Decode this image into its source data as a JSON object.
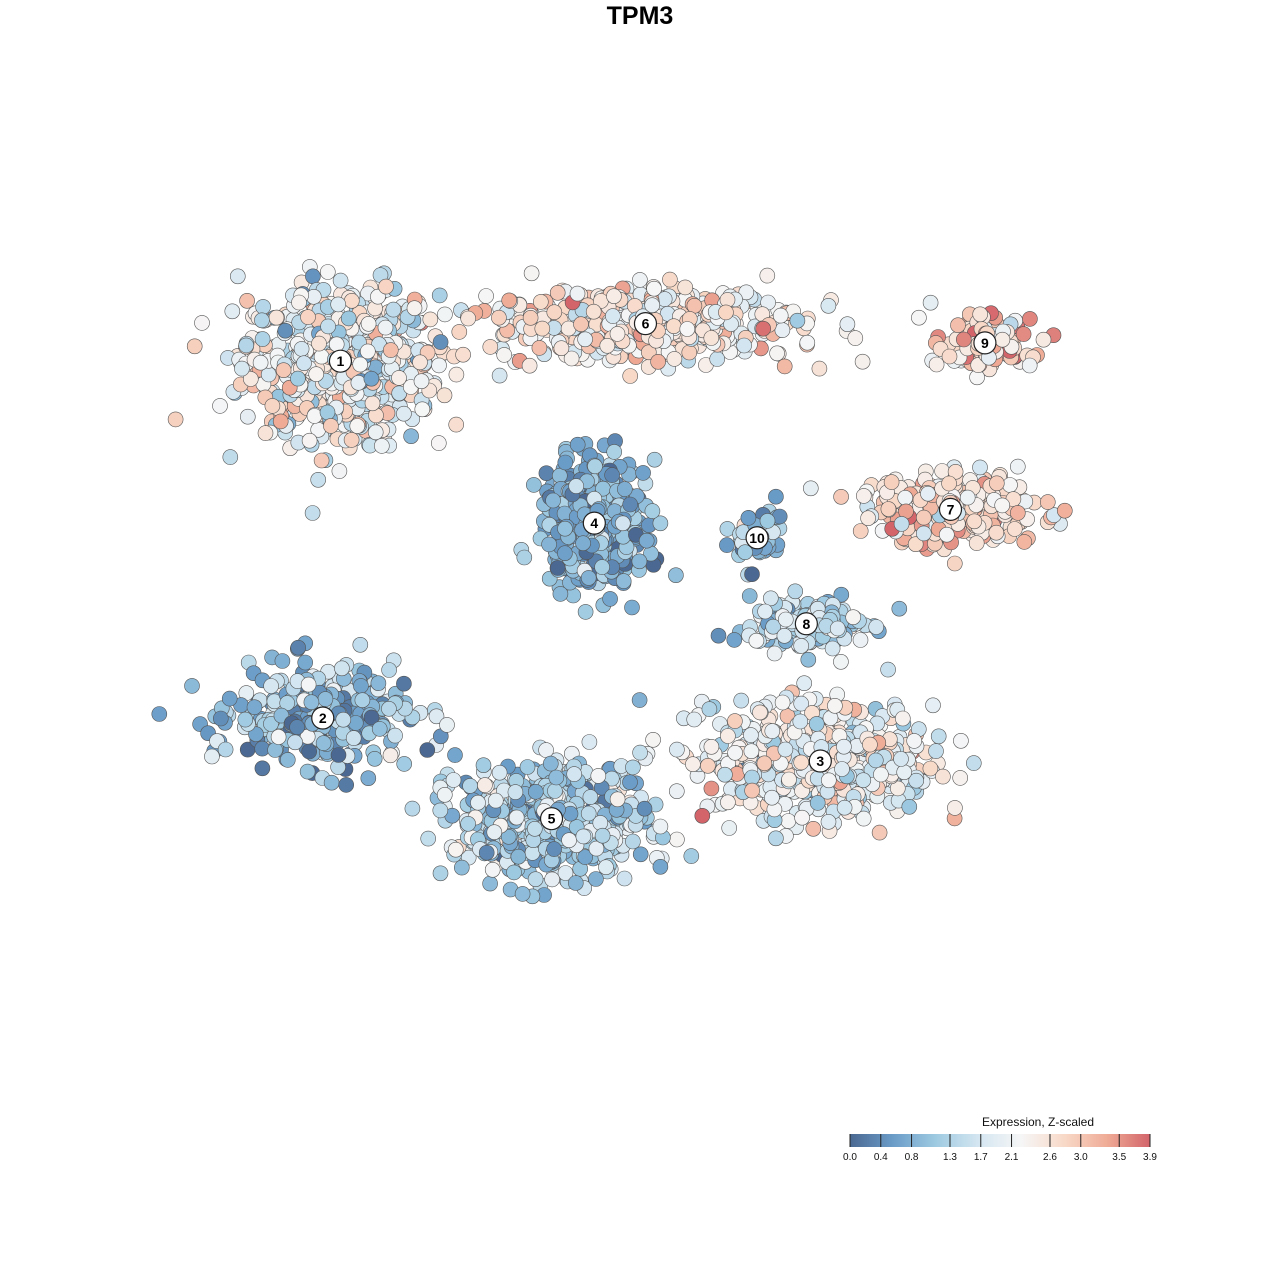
{
  "title": "TPM3",
  "legend": {
    "title": "Expression, Z-scaled",
    "ticks": [
      0.0,
      0.4,
      0.8,
      1.3,
      1.7,
      2.1,
      2.6,
      3.0,
      3.5,
      3.9
    ],
    "tick_labels": [
      "0.0",
      "0.4",
      "0.8",
      "1.3",
      "1.7",
      "2.1",
      "2.6",
      "3.0",
      "3.5",
      "3.9"
    ],
    "min": 0.0,
    "max": 3.9
  },
  "colors": {
    "scale": [
      "#4a6891",
      "#6a9cc8",
      "#9ecae1",
      "#d4e6f1",
      "#f6f6f6",
      "#f8d9c8",
      "#efab96",
      "#d3646a"
    ],
    "point_stroke": "#555555",
    "label_fill": "#ffffff"
  },
  "chart_data": {
    "type": "scatter",
    "title": "TPM3",
    "xlabel": "",
    "ylabel": "",
    "color_variable": "Expression, Z-scaled",
    "color_range": [
      0.0,
      3.9
    ],
    "grid": false,
    "legend_position": "bottom-right",
    "xlim": [
      0,
      100
    ],
    "ylim": [
      0,
      100
    ],
    "clusters": [
      {
        "label": "1",
        "x": 15.1,
        "y": 80.2,
        "sx": 9.5,
        "sy": 7.5,
        "mean": 2.0,
        "spread": 0.6
      },
      {
        "label": "2",
        "x": 13.2,
        "y": 41.2,
        "sx": 8.5,
        "sy": 5.0,
        "mean": 0.9,
        "spread": 0.6
      },
      {
        "label": "3",
        "x": 66.7,
        "y": 36.5,
        "sx": 11.0,
        "sy": 5.5,
        "mean": 2.1,
        "spread": 0.55
      },
      {
        "label": "4",
        "x": 42.4,
        "y": 62.5,
        "sx": 5.0,
        "sy": 6.0,
        "mean": 0.8,
        "spread": 0.4
      },
      {
        "label": "5",
        "x": 37.8,
        "y": 30.2,
        "sx": 9.0,
        "sy": 5.5,
        "mean": 1.3,
        "spread": 0.55
      },
      {
        "label": "6",
        "x": 47.9,
        "y": 84.3,
        "sx": 15.0,
        "sy": 3.5,
        "mean": 2.4,
        "spread": 0.5
      },
      {
        "label": "7",
        "x": 80.7,
        "y": 64.0,
        "sx": 9.0,
        "sy": 3.5,
        "mean": 2.7,
        "spread": 0.5
      },
      {
        "label": "8",
        "x": 65.2,
        "y": 51.5,
        "sx": 5.5,
        "sy": 2.5,
        "mean": 1.4,
        "spread": 0.5
      },
      {
        "label": "9",
        "x": 84.4,
        "y": 82.2,
        "sx": 4.5,
        "sy": 2.5,
        "mean": 2.8,
        "spread": 0.5
      },
      {
        "label": "10",
        "x": 59.9,
        "y": 60.9,
        "sx": 2.5,
        "sy": 3.0,
        "mean": 1.0,
        "spread": 0.6
      }
    ]
  }
}
